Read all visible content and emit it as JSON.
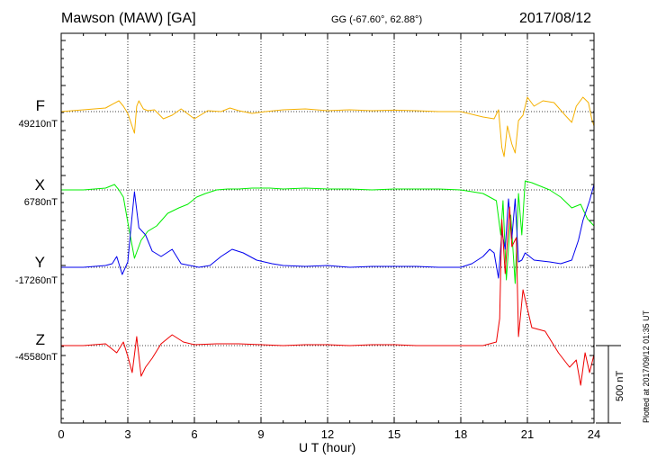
{
  "header": {
    "title": "Mawson (MAW)  [GA]",
    "coords": "GG (-67.60°,  62.88°)",
    "date": "2017/08/12"
  },
  "footer": {
    "plotted": "Plotted at 2017/09/12 01:35 UT"
  },
  "scale_bar": {
    "label": "500 nT",
    "nT": 500
  },
  "chart_data": {
    "type": "line",
    "title": "Mawson (MAW)  [GA]",
    "xlabel": "U T (hour)",
    "ylabel": "",
    "xlim": [
      0,
      24
    ],
    "x_ticks": [
      0,
      3,
      6,
      9,
      12,
      15,
      18,
      21,
      24
    ],
    "x_tick_labels": [
      "0",
      "3",
      "6",
      "9",
      "12",
      "15",
      "18",
      "21",
      "24"
    ],
    "grid": "dotted vertical at 3-hour intervals, dotted horizontal baselines",
    "series": [
      {
        "name": "F",
        "baseline_label": "49210nT",
        "baseline_nT": 49210,
        "color": "#f5b000",
        "x": [
          0,
          1,
          2,
          2.6,
          2.8,
          3.0,
          3.3,
          3.4,
          3.5,
          3.7,
          3.9,
          4.2,
          4.6,
          5.0,
          5.4,
          6.0,
          6.6,
          7.2,
          7.6,
          8.0,
          8.6,
          9.2,
          10,
          11,
          12,
          13,
          14,
          15,
          16,
          17,
          18,
          19,
          19.5,
          19.7,
          19.85,
          19.95,
          20.1,
          20.3,
          20.45,
          20.6,
          20.8,
          21.0,
          21.3,
          21.7,
          22.2,
          22.7,
          23.0,
          23.2,
          23.5,
          23.75,
          23.9,
          24
        ],
        "y": [
          0,
          10,
          20,
          60,
          30,
          -10,
          -120,
          30,
          60,
          15,
          5,
          10,
          -40,
          -20,
          15,
          -40,
          5,
          0,
          20,
          5,
          -10,
          0,
          10,
          15,
          5,
          10,
          5,
          8,
          5,
          0,
          0,
          -30,
          -40,
          10,
          -200,
          -250,
          -80,
          -180,
          -230,
          -50,
          -20,
          80,
          30,
          60,
          50,
          -20,
          -60,
          30,
          80,
          50,
          -40,
          -80
        ]
      },
      {
        "name": "X",
        "baseline_label": "6780nT",
        "baseline_nT": 6780,
        "color": "#00ee00",
        "x": [
          0,
          1,
          2,
          2.4,
          2.6,
          2.8,
          3.0,
          3.3,
          3.6,
          3.9,
          4.3,
          4.8,
          5.3,
          5.7,
          6.1,
          6.5,
          7.0,
          7.5,
          8.0,
          8.6,
          9.4,
          10,
          11,
          12,
          13,
          14,
          15,
          16,
          17,
          18,
          19,
          19.6,
          19.8,
          19.9,
          20.05,
          20.25,
          20.45,
          20.6,
          20.75,
          20.9,
          21.2,
          21.6,
          22.0,
          22.5,
          23.0,
          23.4,
          23.7,
          24
        ],
        "y": [
          0,
          0,
          10,
          30,
          0,
          -40,
          -180,
          -380,
          -280,
          -230,
          -200,
          -130,
          -100,
          -80,
          -40,
          -20,
          0,
          5,
          5,
          10,
          10,
          5,
          10,
          5,
          5,
          0,
          5,
          5,
          5,
          0,
          -20,
          -60,
          -250,
          -60,
          -500,
          -140,
          -520,
          -20,
          -250,
          50,
          40,
          20,
          0,
          -40,
          -100,
          -80,
          -160,
          -200
        ]
      },
      {
        "name": "Y",
        "baseline_label": "-17260nT",
        "baseline_nT": -17260,
        "color": "#0000ee",
        "x": [
          0,
          1,
          2,
          2.3,
          2.5,
          2.75,
          3.0,
          3.15,
          3.3,
          3.5,
          3.8,
          4.1,
          4.5,
          5.0,
          5.4,
          5.8,
          6.2,
          6.7,
          7.2,
          7.7,
          8.2,
          8.8,
          9.5,
          10,
          11,
          12,
          13,
          14,
          15,
          16,
          17,
          18,
          18.5,
          19,
          19.3,
          19.5,
          19.7,
          19.85,
          20.0,
          20.15,
          20.3,
          20.45,
          20.6,
          20.75,
          20.9,
          21.3,
          22.0,
          22.5,
          23.0,
          23.3,
          23.5,
          23.8,
          24
        ],
        "y": [
          0,
          0,
          10,
          20,
          60,
          -40,
          30,
          230,
          420,
          220,
          180,
          90,
          60,
          100,
          20,
          10,
          0,
          10,
          60,
          100,
          80,
          40,
          20,
          10,
          5,
          10,
          0,
          5,
          5,
          5,
          0,
          0,
          20,
          60,
          100,
          80,
          -60,
          200,
          100,
          380,
          160,
          380,
          30,
          40,
          80,
          40,
          30,
          20,
          40,
          150,
          260,
          370,
          460
        ]
      },
      {
        "name": "Z",
        "baseline_label": "-45580nT",
        "baseline_nT": -45580,
        "color": "#ee0000",
        "x": [
          0,
          1,
          2,
          2.5,
          2.8,
          3.0,
          3.2,
          3.4,
          3.6,
          3.8,
          4.1,
          4.5,
          5.0,
          5.5,
          6.0,
          7,
          8,
          9,
          10,
          11,
          12,
          13,
          14,
          15,
          16,
          17,
          18,
          19,
          19.6,
          19.75,
          19.85,
          20.0,
          20.2,
          20.3,
          20.5,
          20.6,
          20.8,
          21.2,
          21.8,
          22.4,
          22.9,
          23.2,
          23.4,
          23.6,
          23.8,
          24
        ],
        "y": [
          0,
          0,
          10,
          -40,
          20,
          -60,
          -150,
          50,
          -170,
          -120,
          -70,
          10,
          60,
          20,
          5,
          10,
          10,
          5,
          0,
          5,
          5,
          0,
          5,
          5,
          0,
          0,
          0,
          0,
          20,
          150,
          700,
          400,
          770,
          550,
          600,
          50,
          310,
          100,
          80,
          -40,
          -120,
          -80,
          -220,
          -40,
          -150,
          -50
        ]
      }
    ]
  }
}
